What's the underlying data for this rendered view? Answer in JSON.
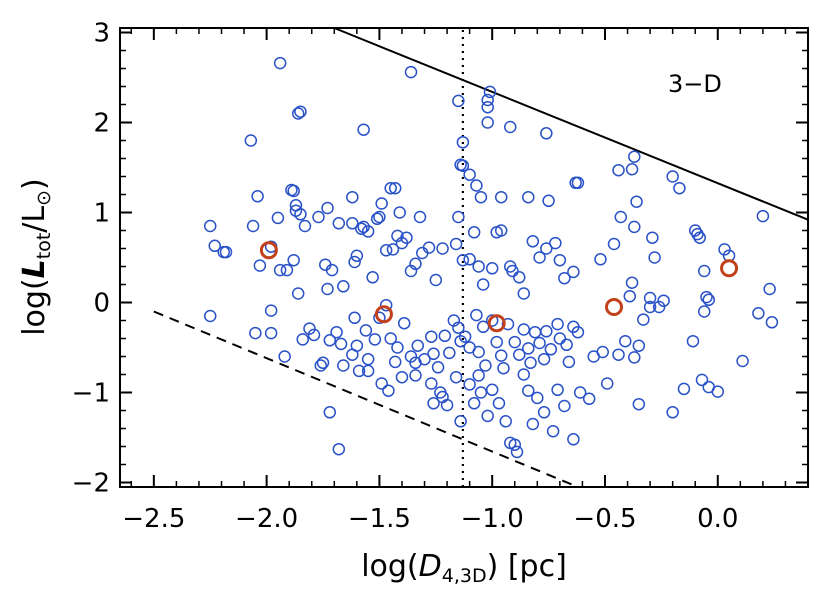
{
  "chart_data": {
    "type": "scatter",
    "title": "",
    "annotation": "3−D",
    "xlabel": "log(D4,3D) [pc]",
    "xlabel_parts": {
      "prefix": "log(",
      "var": "D",
      "sub": "4,3D",
      "suffix": ") [pc]"
    },
    "ylabel": "log(Ltot/L⊙)",
    "ylabel_parts": {
      "prefix": "log(",
      "var": "L",
      "sub": "tot",
      "mid": "/L",
      "sun": "⊙",
      "suffix": ")"
    },
    "xlim": [
      -2.65,
      0.4
    ],
    "ylim": [
      -2.05,
      3.05
    ],
    "xticks": [
      -2.5,
      -2.0,
      -1.5,
      -1.0,
      -0.5,
      0.0
    ],
    "xtick_labels": [
      "−2.5",
      "−2.0",
      "−1.5",
      "−1.0",
      "−0.5",
      "0.0"
    ],
    "yticks": [
      -2,
      -1,
      0,
      1,
      2,
      3
    ],
    "ytick_labels": [
      "−2",
      "−1",
      "0",
      "1",
      "2",
      "3"
    ],
    "grid": false,
    "reference_lines": [
      {
        "name": "upper-limit-line",
        "style": "solid",
        "x": [
          -1.7,
          0.4
        ],
        "y": [
          3.05,
          0.92
        ]
      },
      {
        "name": "lower-limit-line",
        "style": "dashed",
        "x": [
          -2.5,
          -0.62
        ],
        "y": [
          -0.1,
          -2.05
        ]
      },
      {
        "name": "median-line",
        "style": "dotted",
        "x": [
          -1.13,
          -1.13
        ],
        "y": [
          -2.05,
          3.05
        ]
      }
    ],
    "series": [
      {
        "name": "cores",
        "color": "#2a52c8",
        "points": [
          [
            -1.94,
            2.66
          ],
          [
            -1.86,
            2.1
          ],
          [
            -1.85,
            2.12
          ],
          [
            -1.36,
            2.56
          ],
          [
            -1.15,
            2.24
          ],
          [
            -1.01,
            2.34
          ],
          [
            -1.02,
            2.25
          ],
          [
            -1.02,
            2.17
          ],
          [
            -1.02,
            2.0
          ],
          [
            -0.92,
            1.95
          ],
          [
            -0.76,
            1.88
          ],
          [
            -1.57,
            1.92
          ],
          [
            -2.07,
            1.8
          ],
          [
            -1.73,
            1.05
          ],
          [
            -1.13,
            1.78
          ],
          [
            -1.14,
            1.53
          ],
          [
            -1.13,
            1.52
          ],
          [
            -1.1,
            1.42
          ],
          [
            -1.07,
            1.3
          ],
          [
            -1.05,
            1.17
          ],
          [
            -0.96,
            1.17
          ],
          [
            -0.84,
            1.17
          ],
          [
            -0.75,
            1.13
          ],
          [
            -0.63,
            1.33
          ],
          [
            -0.62,
            1.33
          ],
          [
            -0.44,
            1.47
          ],
          [
            -0.37,
            1.62
          ],
          [
            -0.38,
            1.48
          ],
          [
            -0.2,
            1.4
          ],
          [
            -0.17,
            1.27
          ],
          [
            0.2,
            0.96
          ],
          [
            -2.25,
            0.85
          ],
          [
            -2.23,
            0.63
          ],
          [
            -2.19,
            0.56
          ],
          [
            -2.18,
            0.56
          ],
          [
            -2.04,
            1.18
          ],
          [
            -2.06,
            0.85
          ],
          [
            -2.03,
            0.41
          ],
          [
            -1.98,
            0.62
          ],
          [
            -1.95,
            0.94
          ],
          [
            -1.94,
            0.36
          ],
          [
            -1.91,
            0.36
          ],
          [
            -1.89,
            1.25
          ],
          [
            -1.88,
            1.24
          ],
          [
            -1.87,
            1.08
          ],
          [
            -1.87,
            1.02
          ],
          [
            -1.88,
            0.47
          ],
          [
            -1.85,
            0.98
          ],
          [
            -1.86,
            0.1
          ],
          [
            -1.83,
            0.85
          ],
          [
            -1.77,
            0.95
          ],
          [
            -1.74,
            0.42
          ],
          [
            -1.71,
            0.36
          ],
          [
            -1.73,
            0.15
          ],
          [
            -1.68,
            0.88
          ],
          [
            -1.66,
            0.18
          ],
          [
            -1.62,
            1.17
          ],
          [
            -1.62,
            0.88
          ],
          [
            -1.6,
            0.52
          ],
          [
            -1.61,
            0.45
          ],
          [
            -1.58,
            0.82
          ],
          [
            -1.57,
            0.84
          ],
          [
            -1.55,
            0.79
          ],
          [
            -1.53,
            0.28
          ],
          [
            -1.51,
            0.93
          ],
          [
            -1.5,
            0.95
          ],
          [
            -1.49,
            1.1
          ],
          [
            -1.47,
            0.58
          ],
          [
            -1.45,
            1.27
          ],
          [
            -1.43,
            1.27
          ],
          [
            -1.41,
            1.0
          ],
          [
            -1.42,
            0.74
          ],
          [
            -1.44,
            0.59
          ],
          [
            -1.4,
            0.66
          ],
          [
            -1.38,
            0.72
          ],
          [
            -1.36,
            0.35
          ],
          [
            -1.34,
            0.43
          ],
          [
            -1.31,
            0.55
          ],
          [
            -1.32,
            0.95
          ],
          [
            -1.28,
            0.61
          ],
          [
            -1.25,
            0.25
          ],
          [
            -1.22,
            0.6
          ],
          [
            -1.16,
            0.65
          ],
          [
            -1.13,
            0.47
          ],
          [
            -1.15,
            0.95
          ],
          [
            -1.1,
            0.48
          ],
          [
            -1.08,
            0.78
          ],
          [
            -1.06,
            0.4
          ],
          [
            -1.04,
            0.2
          ],
          [
            -1.0,
            0.38
          ],
          [
            -0.98,
            0.78
          ],
          [
            -0.96,
            0.8
          ],
          [
            -0.92,
            0.4
          ],
          [
            -0.91,
            0.35
          ],
          [
            -0.88,
            0.28
          ],
          [
            -0.86,
            0.1
          ],
          [
            -0.82,
            0.68
          ],
          [
            -0.79,
            0.5
          ],
          [
            -0.76,
            0.6
          ],
          [
            -0.72,
            0.66
          ],
          [
            -0.7,
            0.47
          ],
          [
            -0.68,
            0.27
          ],
          [
            -0.64,
            0.34
          ],
          [
            -0.52,
            0.48
          ],
          [
            -0.46,
            0.65
          ],
          [
            -0.43,
            0.95
          ],
          [
            -0.37,
            0.84
          ],
          [
            -0.36,
            1.12
          ],
          [
            -0.29,
            0.72
          ],
          [
            -0.28,
            0.5
          ],
          [
            -0.38,
            0.22
          ],
          [
            -0.3,
            0.05
          ],
          [
            -0.39,
            0.07
          ],
          [
            -0.24,
            0.02
          ],
          [
            -0.1,
            0.8
          ],
          [
            -0.09,
            0.76
          ],
          [
            -0.08,
            0.72
          ],
          [
            -0.06,
            0.35
          ],
          [
            -0.05,
            0.06
          ],
          [
            -0.04,
            0.03
          ],
          [
            0.03,
            0.59
          ],
          [
            0.05,
            0.52
          ],
          [
            -2.25,
            -0.15
          ],
          [
            -2.05,
            -0.34
          ],
          [
            -1.98,
            -0.34
          ],
          [
            -1.98,
            -0.09
          ],
          [
            -1.92,
            -0.6
          ],
          [
            -1.84,
            -0.41
          ],
          [
            -1.81,
            -0.29
          ],
          [
            -1.79,
            -0.36
          ],
          [
            -1.76,
            -0.7
          ],
          [
            -1.75,
            -0.67
          ],
          [
            -1.72,
            -0.42
          ],
          [
            -1.69,
            -0.33
          ],
          [
            -1.66,
            -0.7
          ],
          [
            -1.67,
            -0.46
          ],
          [
            -1.62,
            -0.58
          ],
          [
            -1.61,
            -0.17
          ],
          [
            -1.6,
            -0.48
          ],
          [
            -1.59,
            -0.76
          ],
          [
            -1.56,
            -0.31
          ],
          [
            -1.55,
            -0.63
          ],
          [
            -1.52,
            -0.41
          ],
          [
            -1.5,
            -0.17
          ],
          [
            -1.47,
            -0.03
          ],
          [
            -1.45,
            -0.4
          ],
          [
            -1.42,
            -0.5
          ],
          [
            -1.43,
            -0.66
          ],
          [
            -1.39,
            -0.23
          ],
          [
            -1.36,
            -0.6
          ],
          [
            -1.33,
            -0.48
          ],
          [
            -1.34,
            -0.67
          ],
          [
            -1.3,
            -0.63
          ],
          [
            -1.27,
            -0.38
          ],
          [
            -1.26,
            -0.57
          ],
          [
            -1.24,
            -0.72
          ],
          [
            -1.21,
            -0.37
          ],
          [
            -1.19,
            -0.56
          ],
          [
            -1.17,
            -0.2
          ],
          [
            -1.15,
            -0.28
          ],
          [
            -1.14,
            -0.43
          ],
          [
            -1.12,
            -0.38
          ],
          [
            -1.1,
            -0.5
          ],
          [
            -1.07,
            -0.14
          ],
          [
            -1.06,
            -0.55
          ],
          [
            -1.04,
            -0.27
          ],
          [
            -1.03,
            -0.7
          ],
          [
            -1.0,
            -0.2
          ],
          [
            -0.98,
            -0.44
          ],
          [
            -0.96,
            -0.59
          ],
          [
            -0.95,
            -0.73
          ],
          [
            -0.93,
            -0.24
          ],
          [
            -0.9,
            -0.44
          ],
          [
            -0.88,
            -0.58
          ],
          [
            -0.86,
            -0.3
          ],
          [
            -0.84,
            -0.51
          ],
          [
            -0.83,
            -0.67
          ],
          [
            -0.81,
            -0.33
          ],
          [
            -0.79,
            -0.45
          ],
          [
            -0.77,
            -0.63
          ],
          [
            -0.76,
            -0.32
          ],
          [
            -0.74,
            -0.52
          ],
          [
            -0.71,
            -0.24
          ],
          [
            -0.7,
            -0.4
          ],
          [
            -0.67,
            -0.47
          ],
          [
            -0.66,
            -0.66
          ],
          [
            -0.64,
            -0.27
          ],
          [
            -0.62,
            -0.33
          ],
          [
            -0.55,
            -0.6
          ],
          [
            -0.51,
            -0.55
          ],
          [
            -0.49,
            -0.9
          ],
          [
            -0.44,
            -0.58
          ],
          [
            -0.41,
            -0.43
          ],
          [
            -0.37,
            -0.61
          ],
          [
            -0.35,
            -0.48
          ],
          [
            -0.33,
            -0.19
          ],
          [
            -0.3,
            -0.05
          ],
          [
            -0.26,
            -0.05
          ],
          [
            -1.55,
            -0.76
          ],
          [
            -1.49,
            -0.9
          ],
          [
            -1.46,
            -0.98
          ],
          [
            -1.4,
            -0.83
          ],
          [
            -1.34,
            -0.81
          ],
          [
            -1.27,
            -0.9
          ],
          [
            -1.26,
            -1.12
          ],
          [
            -1.23,
            -1.0
          ],
          [
            -1.2,
            -1.14
          ],
          [
            -1.22,
            -1.05
          ],
          [
            -1.16,
            -0.83
          ],
          [
            -1.14,
            -1.32
          ],
          [
            -1.1,
            -0.91
          ],
          [
            -1.08,
            -1.12
          ],
          [
            -1.06,
            -0.81
          ],
          [
            -1.05,
            -1.0
          ],
          [
            -1.02,
            -1.26
          ],
          [
            -1.0,
            -0.97
          ],
          [
            -0.97,
            -1.12
          ],
          [
            -0.94,
            -1.32
          ],
          [
            -0.92,
            -1.56
          ],
          [
            -0.9,
            -1.58
          ],
          [
            -0.89,
            -1.66
          ],
          [
            -0.86,
            -0.8
          ],
          [
            -0.84,
            -0.98
          ],
          [
            -0.82,
            -1.35
          ],
          [
            -0.8,
            -1.06
          ],
          [
            -0.77,
            -1.22
          ],
          [
            -0.73,
            -1.43
          ],
          [
            -0.71,
            -0.97
          ],
          [
            -0.68,
            -1.15
          ],
          [
            -0.64,
            -1.52
          ],
          [
            -0.61,
            -1.0
          ],
          [
            -0.57,
            -1.07
          ],
          [
            -1.72,
            -1.22
          ],
          [
            -1.68,
            -1.63
          ],
          [
            -0.35,
            -1.13
          ],
          [
            -0.2,
            -1.22
          ],
          [
            -0.15,
            -0.96
          ],
          [
            -0.11,
            -0.43
          ],
          [
            -0.07,
            -0.86
          ],
          [
            -0.04,
            -0.94
          ],
          [
            0.0,
            -0.99
          ],
          [
            0.11,
            -0.65
          ],
          [
            0.18,
            -0.12
          ],
          [
            0.23,
            0.15
          ],
          [
            0.24,
            -0.22
          ],
          [
            -0.06,
            -0.1
          ]
        ]
      },
      {
        "name": "highlighted-cores",
        "color": "#c2401a",
        "points": [
          [
            -1.99,
            0.58
          ],
          [
            -1.48,
            -0.13
          ],
          [
            -0.98,
            -0.23
          ],
          [
            -0.46,
            -0.05
          ],
          [
            0.05,
            0.38
          ]
        ]
      }
    ]
  }
}
